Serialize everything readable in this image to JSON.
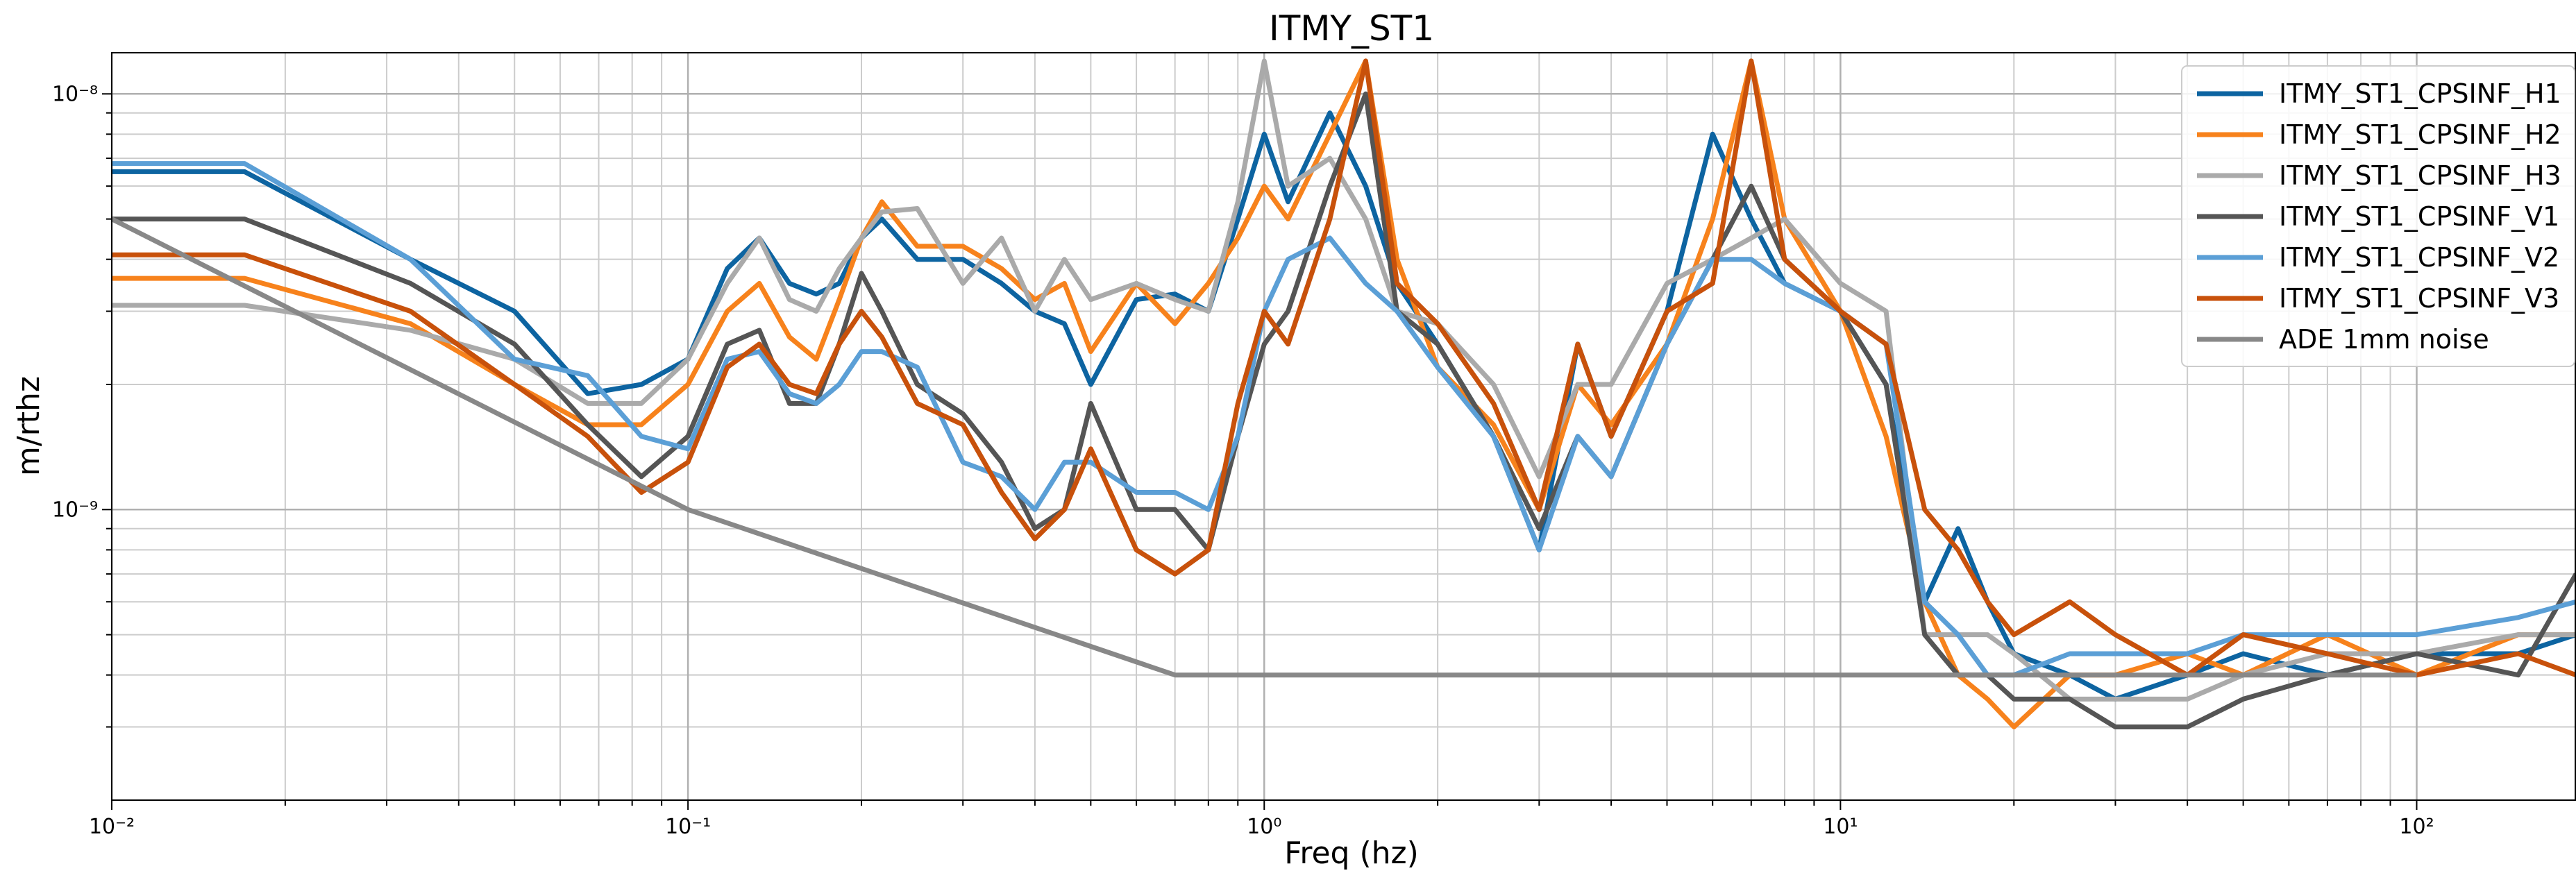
{
  "chart_data": {
    "type": "line",
    "title": "ITMY_ST1",
    "xlabel": "Freq (hz)",
    "ylabel": "m/rthz",
    "xscale": "log",
    "yscale": "log",
    "grid": true,
    "minor_grid": true,
    "legend": "upper right",
    "xlim": [
      0.01,
      189
    ],
    "ylim": [
      2e-10,
      1.256e-08
    ],
    "xticks": [
      {
        "value": 0.01,
        "label": "10⁻²"
      },
      {
        "value": 0.1,
        "label": "10⁻¹"
      },
      {
        "value": 1,
        "label": "10⁰"
      },
      {
        "value": 10,
        "label": "10¹"
      },
      {
        "value": 100,
        "label": "10²"
      }
    ],
    "yticks": [
      {
        "value": 1e-09,
        "label": "10⁻⁹"
      },
      {
        "value": 1e-08,
        "label": "10⁻⁸"
      }
    ],
    "x": [
      0.01,
      0.017,
      0.033,
      0.05,
      0.067,
      0.083,
      0.1,
      0.117,
      0.133,
      0.15,
      0.167,
      0.183,
      0.2,
      0.217,
      0.25,
      0.3,
      0.35,
      0.4,
      0.45,
      0.5,
      0.6,
      0.7,
      0.8,
      0.9,
      1.0,
      1.1,
      1.3,
      1.5,
      1.7,
      2,
      2.5,
      3,
      3.5,
      4,
      5,
      6,
      7,
      8,
      10,
      12,
      14,
      16,
      18,
      20,
      25,
      30,
      40,
      50,
      70,
      100,
      150,
      189
    ],
    "series": [
      {
        "name": "ITMY_ST1_CPSINF_H1",
        "color": "#0d64a1",
        "values": [
          6.5e-09,
          6.5e-09,
          4e-09,
          3e-09,
          1.9e-09,
          2e-09,
          2.3e-09,
          3.8e-09,
          4.5e-09,
          3.5e-09,
          3.3e-09,
          3.5e-09,
          4.5e-09,
          5e-09,
          4e-09,
          4e-09,
          3.5e-09,
          3e-09,
          2.8e-09,
          2e-09,
          3.2e-09,
          3.3e-09,
          3e-09,
          5e-09,
          8e-09,
          5.5e-09,
          9e-09,
          6e-09,
          3.5e-09,
          2.5e-09,
          1.5e-09,
          8e-10,
          2.5e-09,
          1.5e-09,
          3e-09,
          8e-09,
          5e-09,
          3.5e-09,
          3e-09,
          2e-09,
          6e-10,
          9e-10,
          6e-10,
          4.5e-10,
          4e-10,
          3.5e-10,
          4e-10,
          4.5e-10,
          4e-10,
          4.5e-10,
          4.5e-10,
          5e-10
        ]
      },
      {
        "name": "ITMY_ST1_CPSINF_H2",
        "color": "#f7821c",
        "values": [
          3.6e-09,
          3.6e-09,
          2.8e-09,
          2e-09,
          1.6e-09,
          1.6e-09,
          2e-09,
          3e-09,
          3.5e-09,
          2.6e-09,
          2.3e-09,
          3.2e-09,
          4.5e-09,
          5.5e-09,
          4.3e-09,
          4.3e-09,
          3.8e-09,
          3.2e-09,
          3.5e-09,
          2.4e-09,
          3.5e-09,
          2.8e-09,
          3.5e-09,
          4.5e-09,
          6e-09,
          5e-09,
          8e-09,
          1.2e-08,
          4e-09,
          2.2e-09,
          1.6e-09,
          1e-09,
          2e-09,
          1.6e-09,
          2.5e-09,
          5e-09,
          1.2e-08,
          5e-09,
          3e-09,
          1.5e-09,
          6e-10,
          4e-10,
          3.5e-10,
          3e-10,
          4e-10,
          4e-10,
          4.5e-10,
          4e-10,
          5e-10,
          4e-10,
          5e-10,
          5e-10
        ]
      },
      {
        "name": "ITMY_ST1_CPSINF_H3",
        "color": "#aaaaaa",
        "values": [
          3.1e-09,
          3.1e-09,
          2.7e-09,
          2.3e-09,
          1.8e-09,
          1.8e-09,
          2.3e-09,
          3.5e-09,
          4.5e-09,
          3.2e-09,
          3e-09,
          3.8e-09,
          4.5e-09,
          5.2e-09,
          5.3e-09,
          3.5e-09,
          4.5e-09,
          3e-09,
          4e-09,
          3.2e-09,
          3.5e-09,
          3.2e-09,
          3e-09,
          5.5e-09,
          1.2e-08,
          6e-09,
          7e-09,
          5e-09,
          3e-09,
          2.8e-09,
          2e-09,
          1.2e-09,
          2e-09,
          2e-09,
          3.5e-09,
          4e-09,
          4.5e-09,
          5e-09,
          3.5e-09,
          3e-09,
          5e-10,
          5e-10,
          5e-10,
          4.5e-10,
          3.5e-10,
          3.5e-10,
          3.5e-10,
          4e-10,
          4.5e-10,
          4.5e-10,
          5e-10,
          5e-10
        ]
      },
      {
        "name": "ITMY_ST1_CPSINF_V1",
        "color": "#555555",
        "values": [
          5e-09,
          5e-09,
          3.5e-09,
          2.5e-09,
          1.6e-09,
          1.2e-09,
          1.5e-09,
          2.5e-09,
          2.7e-09,
          1.8e-09,
          1.8e-09,
          2.5e-09,
          3.7e-09,
          3e-09,
          2e-09,
          1.7e-09,
          1.3e-09,
          9e-10,
          1e-09,
          1.8e-09,
          1e-09,
          1e-09,
          8e-10,
          1.5e-09,
          2.5e-09,
          3e-09,
          6e-09,
          1e-08,
          3e-09,
          2.5e-09,
          1.5e-09,
          9e-10,
          1.5e-09,
          1.2e-09,
          2.5e-09,
          4e-09,
          6e-09,
          4e-09,
          3e-09,
          2e-09,
          5e-10,
          4e-10,
          4e-10,
          3.5e-10,
          3.5e-10,
          3e-10,
          3e-10,
          3.5e-10,
          4e-10,
          4.5e-10,
          4e-10,
          7e-10
        ]
      },
      {
        "name": "ITMY_ST1_CPSINF_V2",
        "color": "#5b9fd6",
        "values": [
          6.8e-09,
          6.8e-09,
          4e-09,
          2.3e-09,
          2.1e-09,
          1.5e-09,
          1.4e-09,
          2.3e-09,
          2.4e-09,
          1.9e-09,
          1.8e-09,
          2e-09,
          2.4e-09,
          2.4e-09,
          2.2e-09,
          1.3e-09,
          1.2e-09,
          1e-09,
          1.3e-09,
          1.3e-09,
          1.1e-09,
          1.1e-09,
          1e-09,
          1.5e-09,
          3e-09,
          4e-09,
          4.5e-09,
          3.5e-09,
          3e-09,
          2.2e-09,
          1.5e-09,
          8e-10,
          1.5e-09,
          1.2e-09,
          2.5e-09,
          4e-09,
          4e-09,
          3.5e-09,
          3e-09,
          2.5e-09,
          6e-10,
          5e-10,
          4e-10,
          4e-10,
          4.5e-10,
          4.5e-10,
          4.5e-10,
          5e-10,
          5e-10,
          5e-10,
          5.5e-10,
          6e-10
        ]
      },
      {
        "name": "ITMY_ST1_CPSINF_V3",
        "color": "#c8510b",
        "values": [
          4.1e-09,
          4.1e-09,
          3e-09,
          2e-09,
          1.5e-09,
          1.1e-09,
          1.3e-09,
          2.2e-09,
          2.5e-09,
          2e-09,
          1.9e-09,
          2.5e-09,
          3e-09,
          2.6e-09,
          1.8e-09,
          1.6e-09,
          1.1e-09,
          8.5e-10,
          1e-09,
          1.4e-09,
          8e-10,
          7e-10,
          8e-10,
          1.8e-09,
          3e-09,
          2.5e-09,
          5e-09,
          1.2e-08,
          3.5e-09,
          2.8e-09,
          1.8e-09,
          1e-09,
          2.5e-09,
          1.5e-09,
          3e-09,
          3.5e-09,
          1.2e-08,
          4e-09,
          3e-09,
          2.5e-09,
          1e-09,
          8e-10,
          6e-10,
          5e-10,
          6e-10,
          5e-10,
          4e-10,
          5e-10,
          4.5e-10,
          4e-10,
          4.5e-10,
          4e-10
        ]
      },
      {
        "name": "ADE 1mm noise",
        "color": "#888888",
        "x": [
          0.01,
          0.1,
          0.7,
          100
        ],
        "values": [
          5e-09,
          1e-09,
          4e-10,
          4e-10
        ]
      }
    ]
  }
}
